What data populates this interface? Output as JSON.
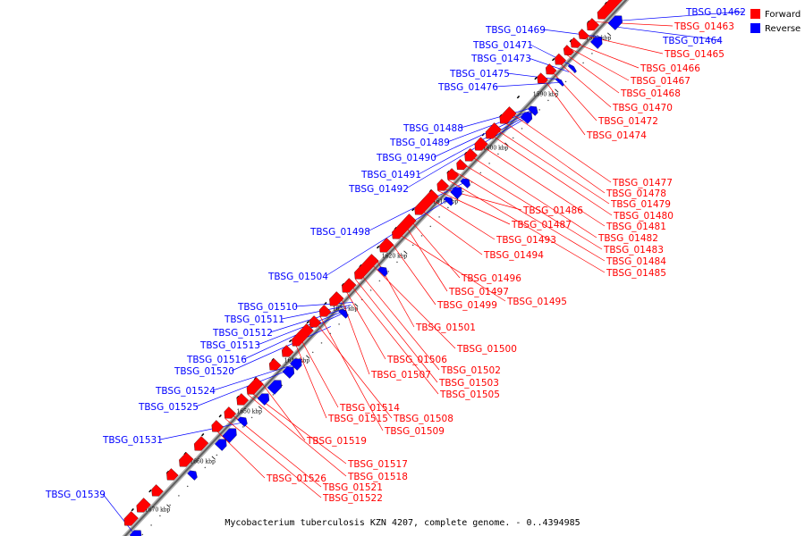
{
  "caption": "Mycobacterium tuberculosis KZN 4207, complete genome. - 0..4394985",
  "legend": [
    {
      "label": "Forward",
      "color": "#ff0000"
    },
    {
      "label": "Reverse",
      "color": "#0000ff"
    }
  ],
  "ticks": [
    "1580 kbp",
    "1590 kbp",
    "1600 kbp",
    "1610 kbp",
    "1620 kbp",
    "1630 kbp",
    "1640 kbp",
    "1650 kbp",
    "1660 kbp",
    "1670 kbp"
  ],
  "reverse_genes": [
    "TBSG_01462",
    "TBSG_01464",
    "TBSG_01469",
    "TBSG_01471",
    "TBSG_01473",
    "TBSG_01475",
    "TBSG_01476",
    "TBSG_01488",
    "TBSG_01489",
    "TBSG_01490",
    "TBSG_01491",
    "TBSG_01492",
    "TBSG_01498",
    "TBSG_01504",
    "TBSG_01510",
    "TBSG_01511",
    "TBSG_01512",
    "TBSG_01513",
    "TBSG_01516",
    "TBSG_01520",
    "TBSG_01524",
    "TBSG_01525",
    "TBSG_01531",
    "TBSG_01539"
  ],
  "forward_genes": [
    "TBSG_01463",
    "TBSG_01465",
    "TBSG_01466",
    "TBSG_01467",
    "TBSG_01468",
    "TBSG_01470",
    "TBSG_01472",
    "TBSG_01474",
    "TBSG_01477",
    "TBSG_01478",
    "TBSG_01479",
    "TBSG_01480",
    "TBSG_01481",
    "TBSG_01482",
    "TBSG_01483",
    "TBSG_01484",
    "TBSG_01485",
    "TBSG_01486",
    "TBSG_01487",
    "TBSG_01493",
    "TBSG_01494",
    "TBSG_01495",
    "TBSG_01496",
    "TBSG_01497",
    "TBSG_01499",
    "TBSG_01500",
    "TBSG_01501",
    "TBSG_01502",
    "TBSG_01503",
    "TBSG_01505",
    "TBSG_01506",
    "TBSG_01507",
    "TBSG_01508",
    "TBSG_01509",
    "TBSG_01514",
    "TBSG_01515",
    "TBSG_01517",
    "TBSG_01518",
    "TBSG_01519",
    "TBSG_01521",
    "TBSG_01522",
    "TBSG_01526"
  ],
  "colors": {
    "forward": "#ff0000",
    "reverse": "#0000ff",
    "axis": "#888888"
  }
}
